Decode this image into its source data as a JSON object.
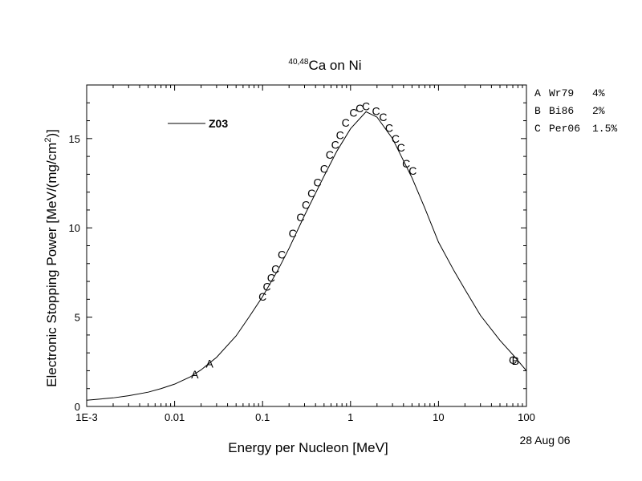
{
  "chart_data": {
    "type": "scatter",
    "title": {
      "superscript": "40,48",
      "main": "Ca on Ni"
    },
    "xlabel": "Energy per Nucleon [MeV]",
    "ylabel": {
      "main": "Electronic Stopping Power [MeV/(mg/cm",
      "superscript": "2",
      "closing": ")]"
    },
    "x_scale": "log",
    "xlim": [
      0.001,
      100
    ],
    "ylim": [
      0,
      18
    ],
    "x_ticks": [
      {
        "value": 0.001,
        "label": "1E-3"
      },
      {
        "value": 0.01,
        "label": "0.01"
      },
      {
        "value": 0.1,
        "label": "0.1"
      },
      {
        "value": 1,
        "label": "1"
      },
      {
        "value": 10,
        "label": "10"
      },
      {
        "value": 100,
        "label": "100"
      }
    ],
    "y_ticks": [
      {
        "value": 0,
        "label": "0"
      },
      {
        "value": 5,
        "label": "5"
      },
      {
        "value": 10,
        "label": "10"
      },
      {
        "value": 15,
        "label": "15"
      }
    ],
    "grid": false,
    "legend_position": "top-left",
    "date_stamp": "28 Aug 06",
    "line_series": {
      "name": "Z03",
      "color": "#000000",
      "points": [
        [
          0.001,
          0.35
        ],
        [
          0.002,
          0.48
        ],
        [
          0.003,
          0.6
        ],
        [
          0.005,
          0.8
        ],
        [
          0.007,
          1.0
        ],
        [
          0.01,
          1.25
        ],
        [
          0.015,
          1.65
        ],
        [
          0.02,
          2.05
        ],
        [
          0.03,
          2.75
        ],
        [
          0.05,
          3.95
        ],
        [
          0.07,
          5.0
        ],
        [
          0.1,
          6.15
        ],
        [
          0.15,
          7.65
        ],
        [
          0.2,
          8.85
        ],
        [
          0.3,
          10.7
        ],
        [
          0.5,
          12.9
        ],
        [
          0.7,
          14.3
        ],
        [
          1.0,
          15.55
        ],
        [
          1.5,
          16.5
        ],
        [
          2.0,
          16.2
        ],
        [
          3.0,
          15.0
        ],
        [
          5.0,
          12.8
        ],
        [
          7.0,
          11.1
        ],
        [
          10.0,
          9.2
        ],
        [
          15.0,
          7.6
        ],
        [
          20.0,
          6.55
        ],
        [
          30.0,
          5.1
        ],
        [
          50.0,
          3.7
        ],
        [
          70.0,
          2.9
        ],
        [
          100.0,
          2.0
        ]
      ]
    },
    "data_sets": [
      {
        "key": "A",
        "ref": "Wr79",
        "uncertainty": "4%",
        "marker": "A",
        "points": [
          [
            0.017,
            1.8
          ],
          [
            0.025,
            2.4
          ]
        ]
      },
      {
        "key": "B",
        "ref": "Bi86",
        "uncertainty": "2%",
        "marker": "B",
        "points": [
          [
            75,
            2.55
          ]
        ]
      },
      {
        "key": "C",
        "ref": "Per06",
        "uncertainty": "1.5%",
        "marker": "C",
        "points": [
          [
            0.1,
            6.15
          ],
          [
            0.112,
            6.7
          ],
          [
            0.125,
            7.2
          ],
          [
            0.14,
            7.7
          ],
          [
            0.165,
            8.5
          ],
          [
            0.22,
            9.7
          ],
          [
            0.27,
            10.6
          ],
          [
            0.31,
            11.3
          ],
          [
            0.36,
            11.95
          ],
          [
            0.42,
            12.55
          ],
          [
            0.5,
            13.3
          ],
          [
            0.58,
            14.1
          ],
          [
            0.67,
            14.65
          ],
          [
            0.76,
            15.2
          ],
          [
            0.88,
            15.9
          ],
          [
            1.08,
            16.45
          ],
          [
            1.27,
            16.7
          ],
          [
            1.5,
            16.8
          ],
          [
            1.95,
            16.55
          ],
          [
            2.35,
            16.2
          ],
          [
            2.75,
            15.6
          ],
          [
            3.25,
            15.0
          ],
          [
            3.75,
            14.5
          ],
          [
            4.3,
            13.6
          ],
          [
            5.1,
            13.2
          ],
          [
            70.0,
            2.6
          ]
        ]
      }
    ]
  }
}
